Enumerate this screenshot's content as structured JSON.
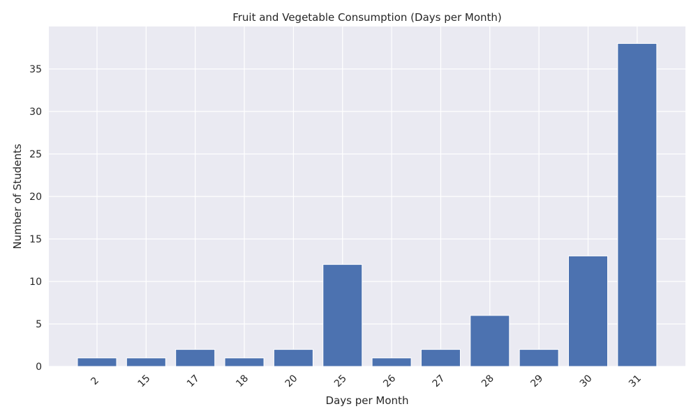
{
  "chart_data": {
    "type": "bar",
    "title": "Fruit and Vegetable Consumption (Days per Month)",
    "xlabel": "Days per Month",
    "ylabel": "Number of Students",
    "categories": [
      "2",
      "15",
      "17",
      "18",
      "20",
      "25",
      "26",
      "27",
      "28",
      "29",
      "30",
      "31"
    ],
    "values": [
      1,
      1,
      2,
      1,
      2,
      12,
      1,
      2,
      6,
      2,
      13,
      38
    ],
    "ylim": [
      0,
      40
    ],
    "yticks": [
      0,
      5,
      10,
      15,
      20,
      25,
      30,
      35
    ],
    "grid": true,
    "legend": "none",
    "colors": {
      "bar": "#4c72b0",
      "background": "#eaeaf2",
      "grid": "#ffffff",
      "text": "#262626"
    }
  }
}
